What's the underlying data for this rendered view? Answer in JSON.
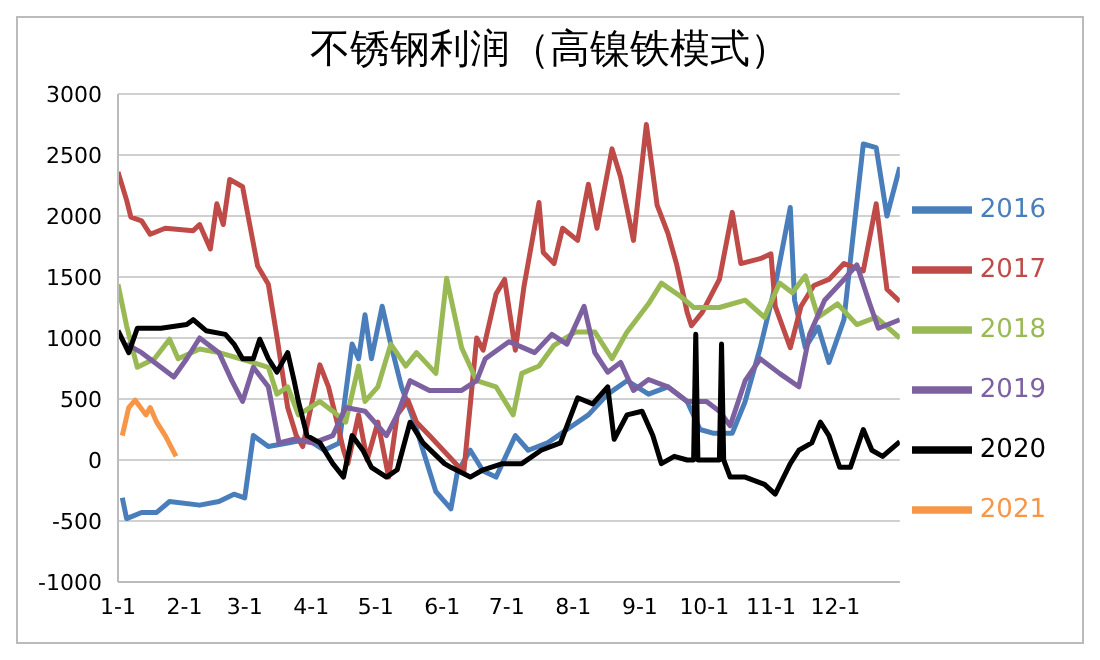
{
  "chart_data": {
    "type": "line",
    "title": "不锈钢利润（高镍铁模式）",
    "xlim": [
      "--01-01",
      "--12-31"
    ],
    "xticks": [
      {
        "value": "--01-01",
        "label": "1-1"
      },
      {
        "value": "--02-01",
        "label": "2-1"
      },
      {
        "value": "--03-01",
        "label": "3-1"
      },
      {
        "value": "--04-01",
        "label": "4-1"
      },
      {
        "value": "--05-01",
        "label": "5-1"
      },
      {
        "value": "--06-01",
        "label": "6-1"
      },
      {
        "value": "--07-01",
        "label": "7-1"
      },
      {
        "value": "--08-01",
        "label": "8-1"
      },
      {
        "value": "--09-01",
        "label": "9-1"
      },
      {
        "value": "--10-01",
        "label": "10-1"
      },
      {
        "value": "--11-01",
        "label": "11-1"
      },
      {
        "value": "--12-01",
        "label": "12-1"
      }
    ],
    "ylim": [
      -1000,
      3000
    ],
    "yticks": [
      -1000,
      -500,
      0,
      500,
      1000,
      1500,
      2000,
      2500,
      3000
    ],
    "grid": "y",
    "legend": "right",
    "marker": "none",
    "series": [
      {
        "name": "2016",
        "color": "#4a7ebb",
        "x": [
          "--01-03",
          "--01-05",
          "--01-12",
          "--01-19",
          "--01-25",
          "--02-08",
          "--02-17",
          "--02-24",
          "--03-01",
          "--03-05",
          "--03-12",
          "--03-21",
          "--03-30",
          "--04-07",
          "--04-14",
          "--04-20",
          "--04-23",
          "--04-26",
          "--04-29",
          "--05-04",
          "--05-08",
          "--05-13",
          "--05-19",
          "--05-23",
          "--05-29",
          "--06-05",
          "--06-08",
          "--06-14",
          "--06-20",
          "--06-26",
          "--07-05",
          "--07-11",
          "--07-20",
          "--07-29",
          "--08-08",
          "--08-17",
          "--08-26",
          "--09-05",
          "--09-14",
          "--09-23",
          "--09-29",
          "--10-05",
          "--10-14",
          "--10-20",
          "--10-27",
          "--11-03",
          "--11-10",
          "--11-12",
          "--11-17",
          "--11-23",
          "--11-28",
          "--12-05",
          "--12-09",
          "--12-14",
          "--12-20",
          "--12-25",
          "--12-31"
        ],
        "values": [
          -310,
          -480,
          -430,
          -430,
          -340,
          -370,
          -340,
          -280,
          -310,
          200,
          110,
          140,
          170,
          80,
          140,
          950,
          830,
          1190,
          830,
          1260,
          950,
          600,
          310,
          80,
          -260,
          -400,
          -100,
          80,
          -90,
          -140,
          200,
          80,
          140,
          250,
          370,
          540,
          650,
          540,
          600,
          480,
          250,
          220,
          220,
          480,
          920,
          1430,
          2070,
          1310,
          920,
          1090,
          800,
          1150,
          1800,
          2590,
          2560,
          2000,
          2400
        ]
      },
      {
        "name": "2017",
        "color": "#be4b48",
        "x": [
          "--01-01",
          "--01-05",
          "--01-07",
          "--01-12",
          "--01-16",
          "--01-23",
          "--02-05",
          "--02-08",
          "--02-13",
          "--02-16",
          "--02-19",
          "--02-22",
          "--02-28",
          "--03-03",
          "--03-07",
          "--03-12",
          "--03-16",
          "--03-21",
          "--03-25",
          "--03-28",
          "--04-05",
          "--04-09",
          "--04-13",
          "--04-16",
          "--04-18",
          "--04-23",
          "--04-27",
          "--05-02",
          "--05-07",
          "--05-11",
          "--05-16",
          "--05-20",
          "--05-26",
          "--06-11",
          "--06-17",
          "--06-20",
          "--06-26",
          "--06-30",
          "--07-05",
          "--07-09",
          "--07-16",
          "--07-18",
          "--07-23",
          "--07-27",
          "--08-03",
          "--08-08",
          "--08-12",
          "--08-19",
          "--08-23",
          "--08-29",
          "--09-04",
          "--09-09",
          "--09-14",
          "--09-18",
          "--09-23",
          "--09-25",
          "--09-30",
          "--10-08",
          "--10-14",
          "--10-18",
          "--10-27",
          "--11-01",
          "--11-03",
          "--11-10",
          "--11-15",
          "--11-21",
          "--11-28",
          "--12-05",
          "--12-14",
          "--12-20",
          "--12-25",
          "--12-31"
        ],
        "values": [
          2360,
          2130,
          1990,
          1960,
          1850,
          1900,
          1880,
          1930,
          1730,
          2100,
          1930,
          2300,
          2240,
          1960,
          1590,
          1440,
          1010,
          430,
          200,
          110,
          780,
          600,
          310,
          80,
          -30,
          370,
          0,
          310,
          -140,
          370,
          490,
          310,
          200,
          -100,
          1000,
          900,
          1360,
          1480,
          900,
          1420,
          2110,
          1700,
          1610,
          1900,
          1800,
          2260,
          1900,
          2550,
          2320,
          1800,
          2750,
          2090,
          1860,
          1610,
          1210,
          1100,
          1210,
          1480,
          2030,
          1610,
          1650,
          1690,
          1260,
          920,
          1260,
          1430,
          1480,
          1610,
          1550,
          2100,
          1400,
          1300
        ]
      },
      {
        "name": "2018",
        "color": "#98b954",
        "x": [
          "--01-01",
          "--01-05",
          "--01-10",
          "--01-18",
          "--01-25",
          "--01-29",
          "--02-08",
          "--02-17",
          "--02-27",
          "--03-12",
          "--03-16",
          "--03-21",
          "--03-26",
          "--04-05",
          "--04-11",
          "--04-17",
          "--04-23",
          "--04-26",
          "--05-02",
          "--05-08",
          "--05-15",
          "--05-20",
          "--05-29",
          "--06-03",
          "--06-10",
          "--06-17",
          "--06-26",
          "--07-04",
          "--07-08",
          "--07-16",
          "--07-23",
          "--08-02",
          "--08-11",
          "--08-19",
          "--08-26",
          "--09-05",
          "--09-11",
          "--09-20",
          "--09-26",
          "--10-08",
          "--10-20",
          "--10-29",
          "--11-05",
          "--11-11",
          "--11-17",
          "--11-23",
          "--12-02",
          "--12-11",
          "--12-20",
          "--12-31"
        ],
        "values": [
          1440,
          1100,
          760,
          830,
          990,
          830,
          910,
          880,
          830,
          760,
          540,
          600,
          370,
          480,
          400,
          310,
          770,
          480,
          600,
          950,
          770,
          880,
          710,
          1490,
          920,
          650,
          600,
          370,
          710,
          770,
          940,
          1050,
          1050,
          830,
          1050,
          1280,
          1450,
          1340,
          1250,
          1250,
          1310,
          1170,
          1450,
          1370,
          1510,
          1170,
          1280,
          1110,
          1170,
          1000
        ]
      },
      {
        "name": "2019",
        "color": "#7d60a0",
        "x": [
          "--01-05",
          "--01-12",
          "--01-21",
          "--01-27",
          "--02-02",
          "--02-08",
          "--02-17",
          "--02-23",
          "--02-28",
          "--03-05",
          "--03-12",
          "--03-17",
          "--03-24",
          "--04-02",
          "--04-11",
          "--04-17",
          "--04-26",
          "--05-06",
          "--05-11",
          "--05-17",
          "--05-26",
          "--06-10",
          "--06-17",
          "--06-21",
          "--07-02",
          "--07-14",
          "--07-22",
          "--07-29",
          "--08-06",
          "--08-11",
          "--08-17",
          "--08-23",
          "--08-29",
          "--09-05",
          "--09-14",
          "--09-23",
          "--10-02",
          "--10-08",
          "--10-13",
          "--10-20",
          "--10-27",
          "--11-05",
          "--11-14",
          "--11-19",
          "--11-26",
          "--12-05",
          "--12-11",
          "--12-17",
          "--12-21",
          "--12-31"
        ],
        "values": [
          950,
          880,
          760,
          680,
          830,
          1000,
          880,
          650,
          480,
          760,
          600,
          140,
          170,
          140,
          200,
          430,
          400,
          200,
          370,
          650,
          570,
          570,
          650,
          830,
          970,
          880,
          1030,
          950,
          1260,
          880,
          720,
          800,
          570,
          660,
          600,
          480,
          480,
          400,
          280,
          650,
          830,
          710,
          600,
          1030,
          1310,
          1480,
          1600,
          1280,
          1080,
          1150
        ]
      },
      {
        "name": "2020",
        "color": "#000000",
        "x": [
          "--01-01",
          "--01-06",
          "--01-10",
          "--01-21",
          "--02-02",
          "--02-05",
          "--02-11",
          "--02-20",
          "--02-24",
          "--02-28",
          "--03-05",
          "--03-08",
          "--03-12",
          "--03-16",
          "--03-21",
          "--03-24",
          "--03-26",
          "--03-30",
          "--04-05",
          "--04-11",
          "--04-16",
          "--04-20",
          "--04-25",
          "--04-29",
          "--05-06",
          "--05-11",
          "--05-17",
          "--05-23",
          "--06-02",
          "--06-05",
          "--06-14",
          "--06-20",
          "--06-29",
          "--07-08",
          "--07-17",
          "--07-26",
          "--08-03",
          "--08-10",
          "--08-17",
          "--08-20",
          "--08-26",
          "--09-02",
          "--09-07",
          "--09-11",
          "--09-17",
          "--09-23",
          "--09-26",
          "--09-27",
          "--09-28",
          "--10-08",
          "--10-09",
          "--10-10",
          "--10-13",
          "--10-20",
          "--10-29",
          "--11-03",
          "--11-10",
          "--11-14",
          "--11-20",
          "--11-24",
          "--11-28",
          "--12-03",
          "--12-08",
          "--12-14",
          "--12-18",
          "--12-23",
          "--12-31"
        ],
        "values": [
          1060,
          880,
          1080,
          1080,
          1110,
          1150,
          1060,
          1030,
          950,
          830,
          830,
          990,
          830,
          720,
          880,
          650,
          480,
          200,
          140,
          -30,
          -140,
          200,
          80,
          -60,
          -140,
          -80,
          310,
          140,
          -30,
          -60,
          -140,
          -80,
          -30,
          -30,
          80,
          140,
          510,
          460,
          600,
          170,
          370,
          400,
          200,
          -30,
          30,
          0,
          0,
          1030,
          0,
          0,
          950,
          0,
          -140,
          -140,
          -200,
          -280,
          -30,
          80,
          140,
          310,
          200,
          -60,
          -60,
          250,
          80,
          30,
          150
        ]
      },
      {
        "name": "2021",
        "color": "#f79646",
        "x": [
          "--01-03",
          "--01-06",
          "--01-09",
          "--01-14",
          "--01-16",
          "--01-19",
          "--01-23",
          "--01-28"
        ],
        "values": [
          200,
          430,
          490,
          370,
          430,
          310,
          200,
          30
        ]
      }
    ]
  }
}
